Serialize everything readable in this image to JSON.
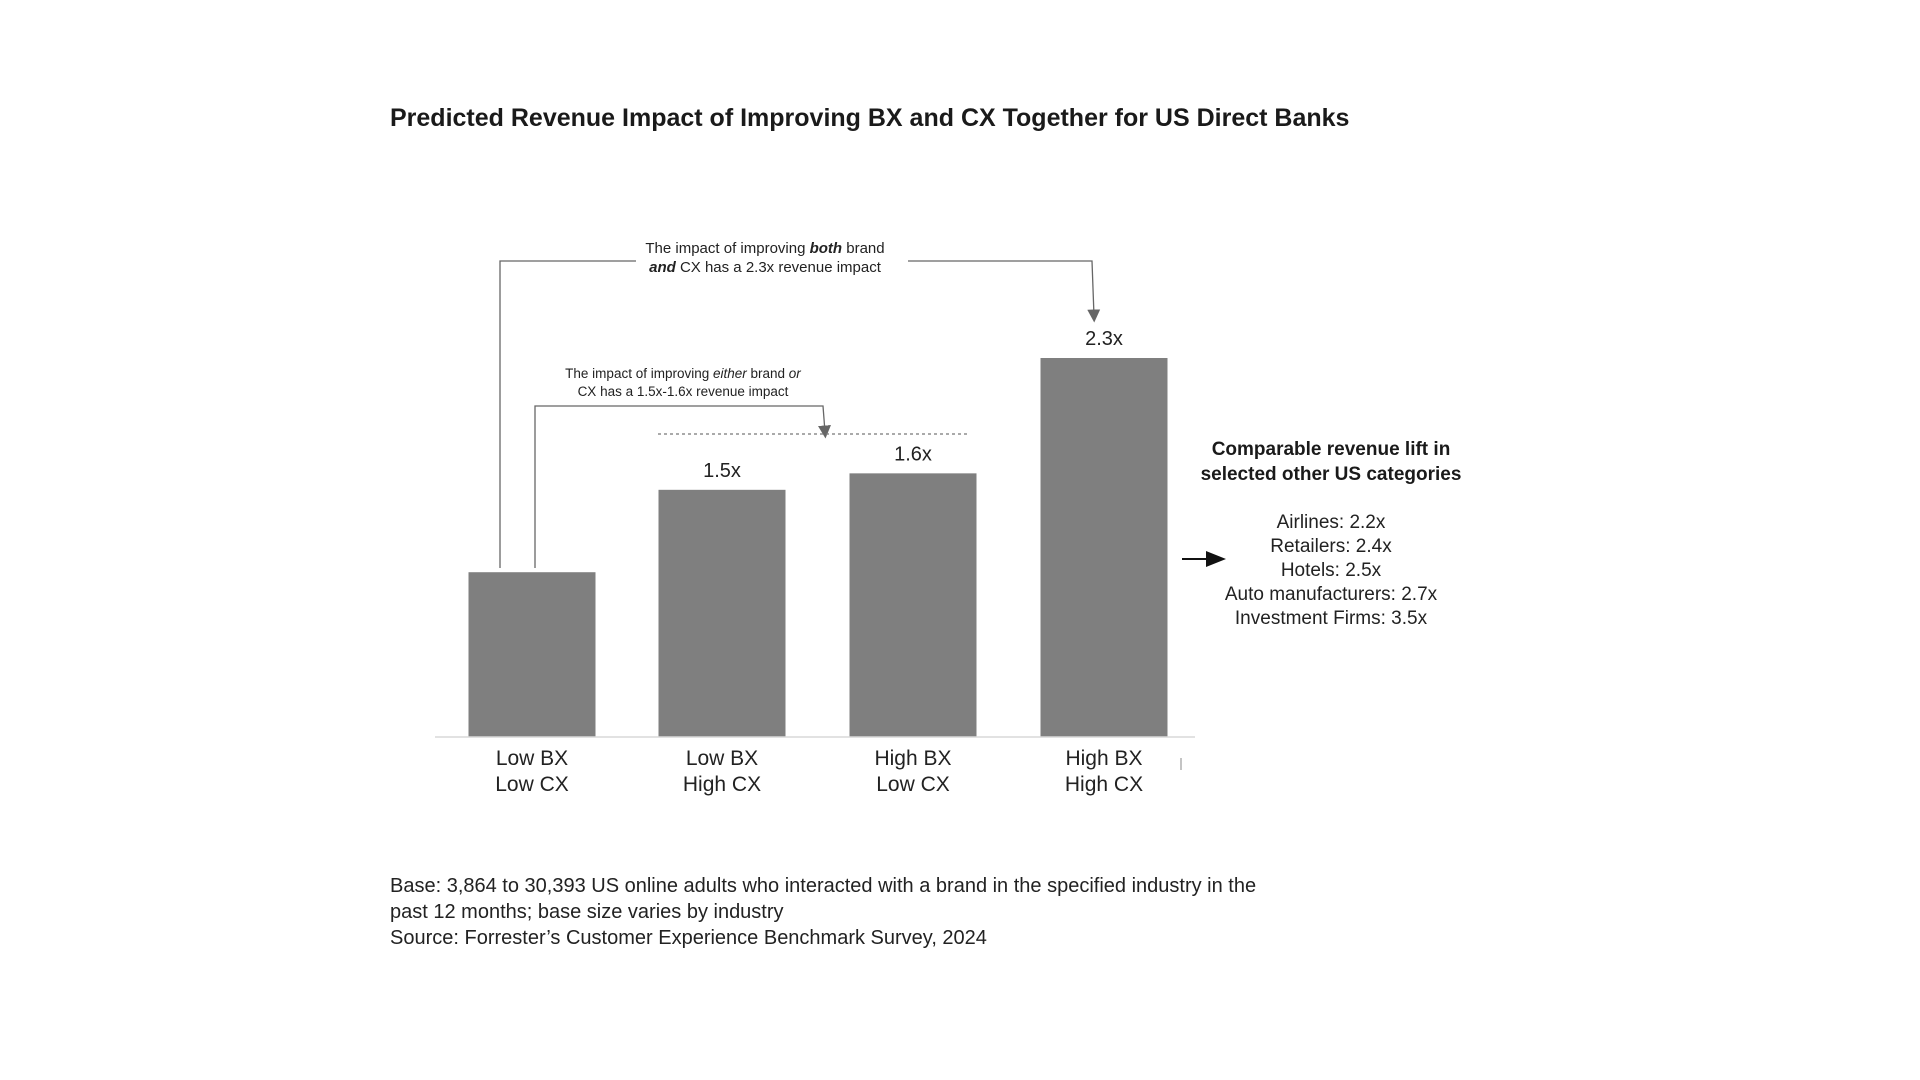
{
  "chart_data": {
    "type": "bar",
    "title": "Predicted Revenue Impact of Improving BX and CX Together for US Direct Banks",
    "categories": [
      [
        "Low BX",
        "Low CX"
      ],
      [
        "Low BX",
        "High CX"
      ],
      [
        "High BX",
        "Low CX"
      ],
      [
        "High BX",
        "High CX"
      ]
    ],
    "values": [
      1.0,
      1.5,
      1.6,
      2.3
    ],
    "value_labels": [
      "",
      "1.5x",
      "1.6x",
      "2.3x"
    ],
    "bar_color": "#7f7f7f",
    "ylim": [
      0,
      2.3
    ],
    "grid": false,
    "annotations": {
      "both": {
        "line1_parts": [
          "The impact of improving ",
          "both",
          " brand"
        ],
        "line2_parts": [
          "and",
          " CX has a 2.3x revenue impact"
        ]
      },
      "either": {
        "line1_parts": [
          "The impact of improving ",
          "either",
          " brand ",
          "or"
        ],
        "line2": "CX has a 1.5x-1.6x revenue impact"
      }
    },
    "side_panel": {
      "heading": [
        "Comparable revenue lift in",
        "selected other US categories"
      ],
      "items": [
        "Airlines: 2.2x",
        "Retailers: 2.4x",
        "Hotels: 2.5x",
        "Auto manufacturers: 2.7x",
        "Investment Firms: 3.5x"
      ]
    }
  },
  "footer": {
    "lines": [
      "Base: 3,864 to 30,393 US online adults who interacted with a brand in the specified industry in the",
      "past 12 months; base size varies by industry",
      "Source: Forrester’s Customer Experience Benchmark Survey, 2024"
    ]
  },
  "colors": {
    "bar": "#7f7f7f",
    "line": "#666666",
    "text": "#222222"
  }
}
